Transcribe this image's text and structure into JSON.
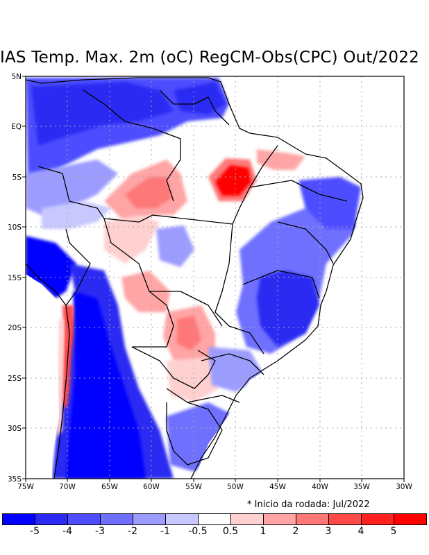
{
  "title": "IAS Temp. Max. 2m (oC) RegCM-Obs(CPC) Out/2022",
  "note": "* Inicio da rodada: Jul/2022",
  "lat_labels": [
    "5N",
    "EQ",
    "5S",
    "10S",
    "15S",
    "20S",
    "25S",
    "30S",
    "35S"
  ],
  "lon_labels": [
    "75W",
    "70W",
    "65W",
    "60W",
    "55W",
    "50W",
    "45W",
    "40W",
    "35W",
    "30W"
  ],
  "colorbar": {
    "colors": [
      "#0000ff",
      "#2a2af2",
      "#4d4dff",
      "#7070ff",
      "#9c9cff",
      "#c8c8ff",
      "#ffffff",
      "#ffd0d0",
      "#ffa5a5",
      "#ff7878",
      "#ff4a4a",
      "#ff2020",
      "#ff0000"
    ],
    "labels": [
      "-5",
      "-4",
      "-3",
      "-2",
      "-1",
      "-0.5",
      "0.5",
      "1",
      "2",
      "3",
      "4",
      "5"
    ]
  }
}
